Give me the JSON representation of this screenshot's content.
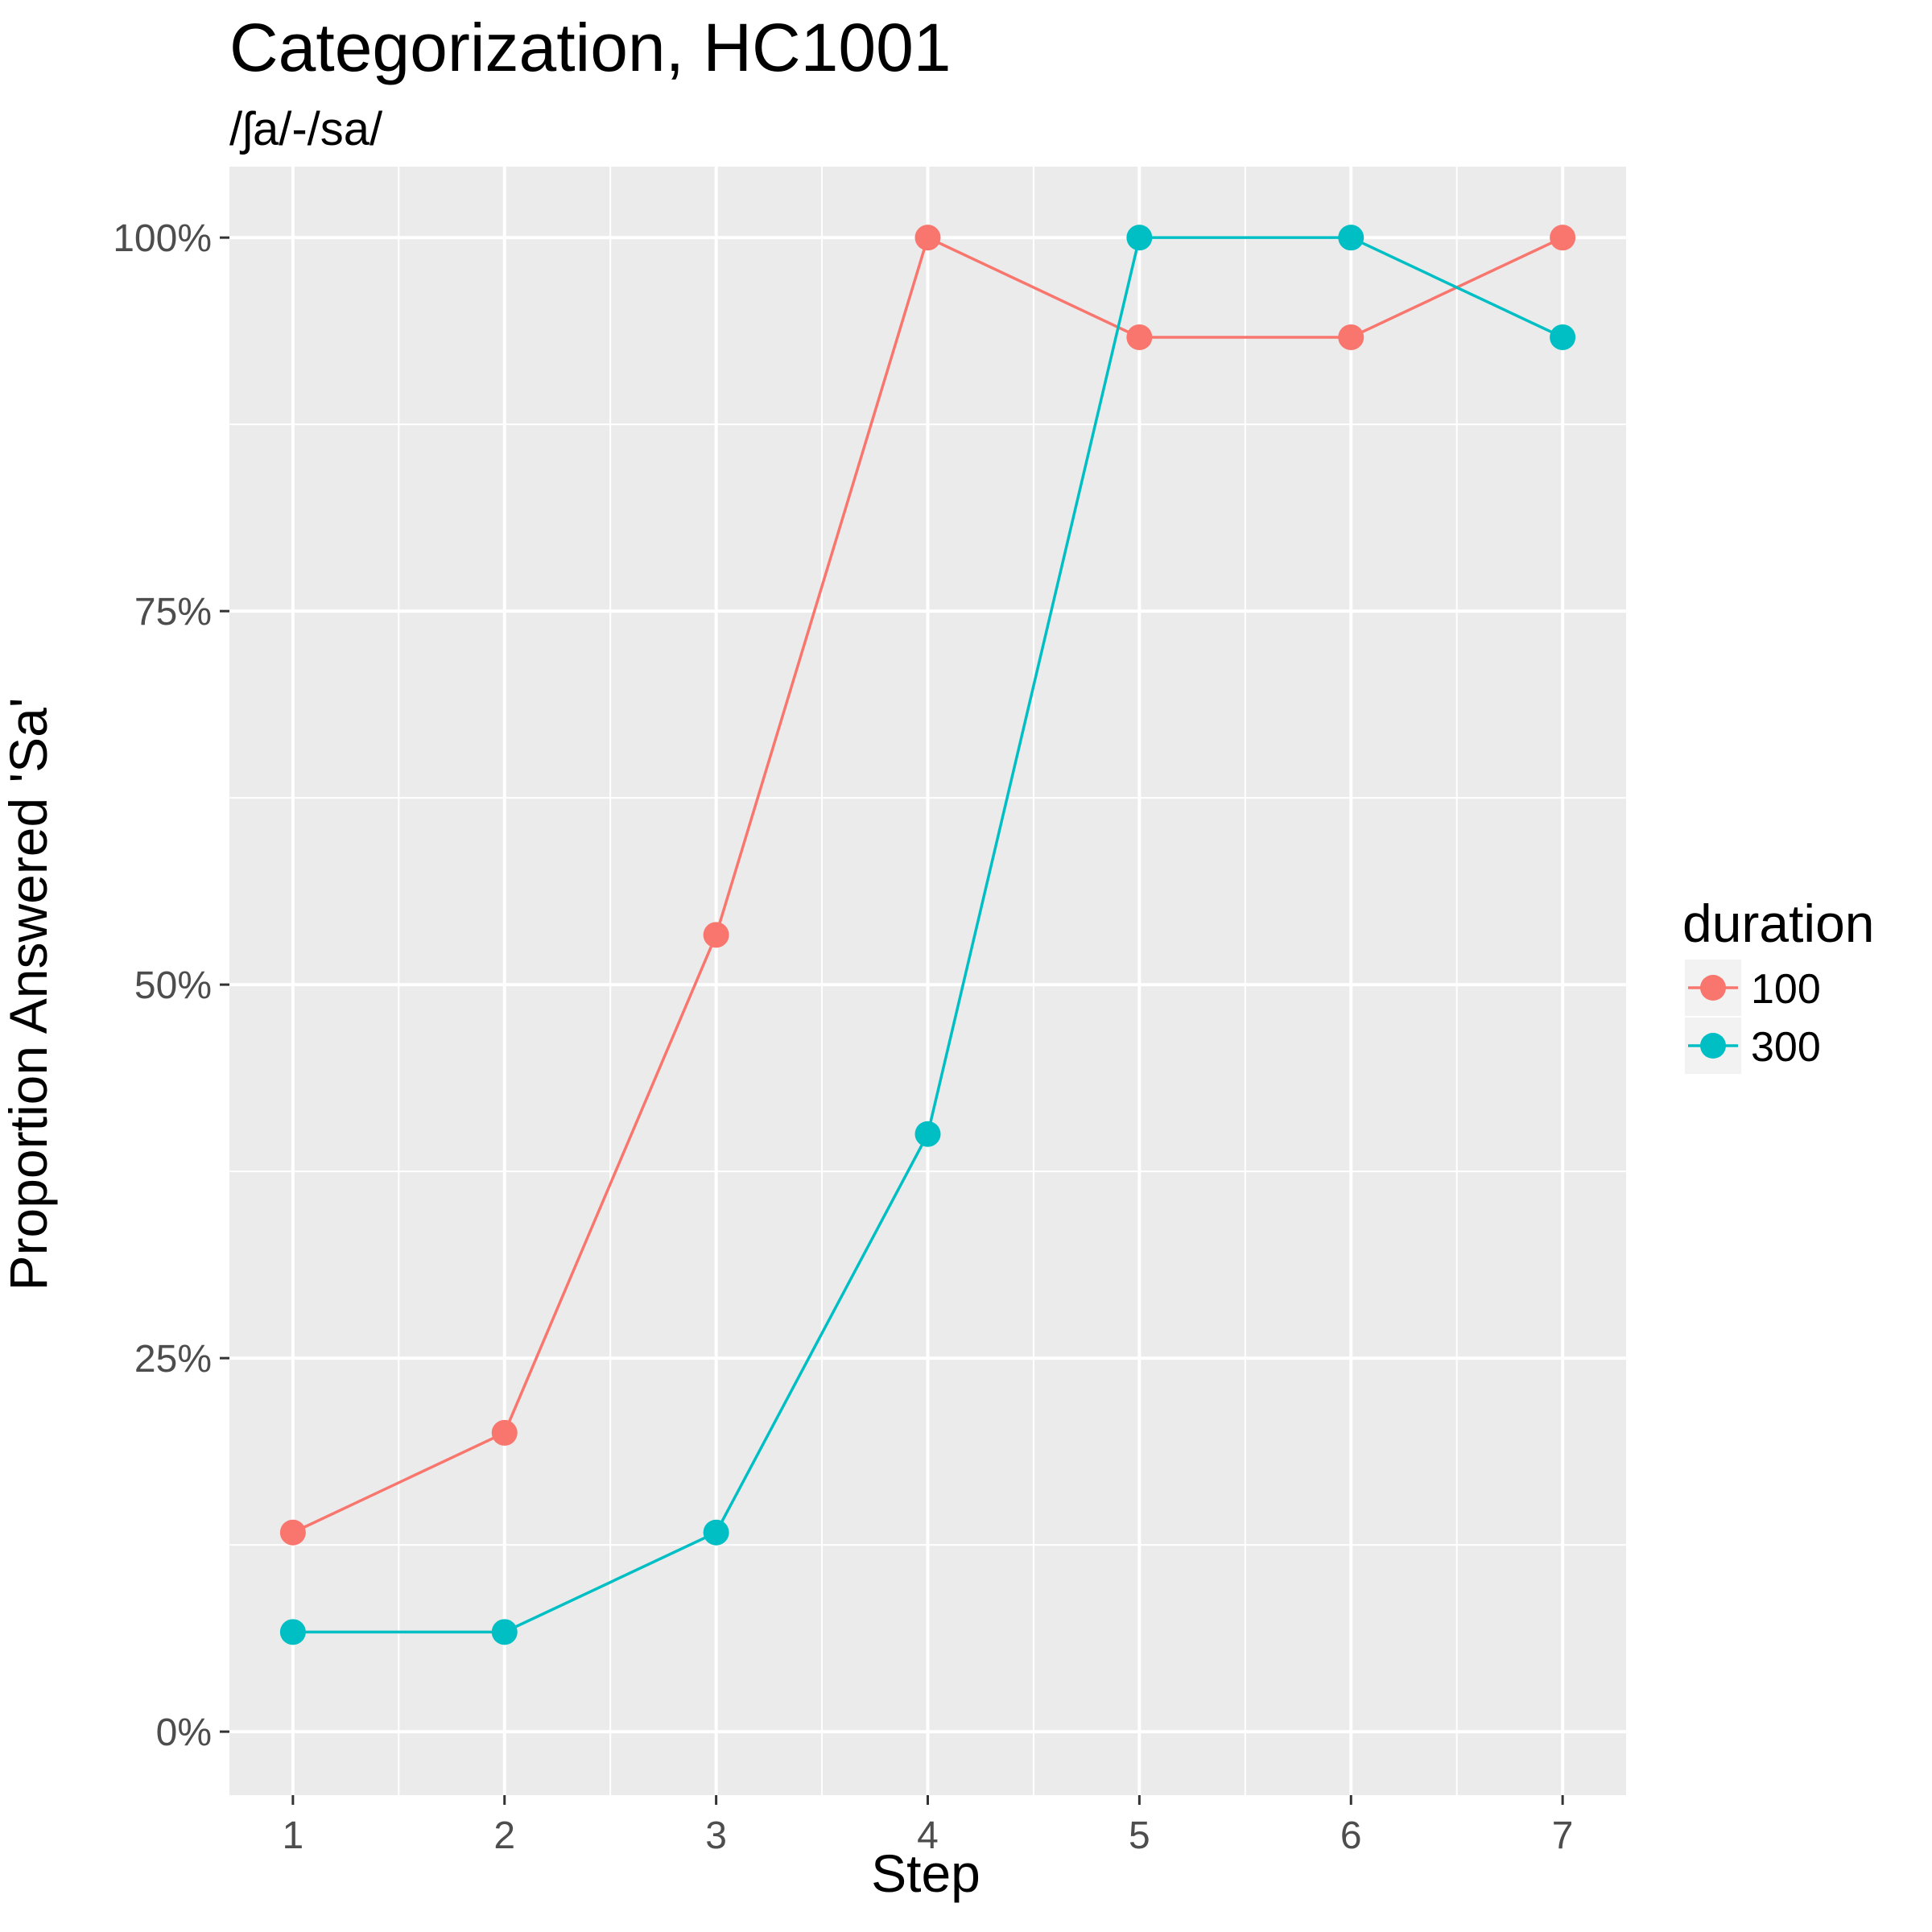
{
  "chart_data": {
    "type": "line",
    "title": "Categorization, HC1001",
    "subtitle": "/ʃa/-/sa/",
    "xlabel": "Step",
    "ylabel": "Proportion Answered 'Sa'",
    "x": [
      1,
      2,
      3,
      4,
      5,
      6,
      7
    ],
    "x_tick_labels": [
      "1",
      "2",
      "3",
      "4",
      "5",
      "6",
      "7"
    ],
    "xlim": [
      0.7,
      7.3
    ],
    "ylim": [
      -0.0425,
      1.0475
    ],
    "y_ticks": [
      0,
      0.25,
      0.5,
      0.75,
      1.0
    ],
    "y_tick_labels": [
      "0%",
      "25%",
      "50%",
      "75%",
      "100%"
    ],
    "grid": true,
    "legend": {
      "title": "duration",
      "placement": "right"
    },
    "series": [
      {
        "name": "100",
        "color": "#F8766D",
        "values": [
          0.1333,
          0.2,
          0.5333,
          1.0,
          0.9333,
          0.9333,
          1.0
        ]
      },
      {
        "name": "300",
        "color": "#00BFC4",
        "values": [
          0.0667,
          0.0667,
          0.1333,
          0.4,
          1.0,
          1.0,
          0.9333
        ]
      }
    ]
  },
  "colors": {
    "panel_background": "#EBEBEB",
    "grid_major": "#FFFFFF",
    "legend_key_background": "#F2F2F2"
  }
}
